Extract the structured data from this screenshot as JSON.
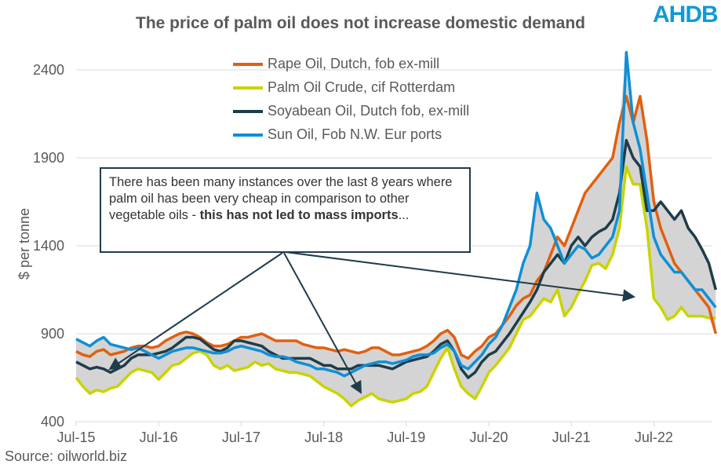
{
  "logo": "AHDB",
  "source": "Source: oilworld.biz",
  "annotation": {
    "text": "There has been many instances over the last 8 years where palm oil has been very cheap in comparison to other vegetable oils - ",
    "bold": "this has not led to mass imports",
    "tail": "..."
  },
  "chart_data": {
    "type": "line",
    "title": "The price of palm oil does not increase domestic demand",
    "ylabel": "$ per tonne",
    "xlabel": "",
    "ylim": [
      400,
      2500
    ],
    "yticks": [
      "400",
      "900",
      "1400",
      "1900",
      "2400"
    ],
    "xticks": [
      "Jul-15",
      "Jul-16",
      "Jul-17",
      "Jul-18",
      "Jul-19",
      "Jul-20",
      "Jul-21",
      "Jul-22"
    ],
    "x_start": "Jul-15",
    "x_step": "month",
    "legend_position": "top-center",
    "series": [
      {
        "name": "Rape Oil, Dutch, fob ex-mill",
        "color": "#e06010",
        "values": [
          800,
          780,
          770,
          800,
          810,
          780,
          790,
          800,
          820,
          830,
          830,
          820,
          830,
          860,
          880,
          900,
          910,
          900,
          880,
          850,
          830,
          830,
          840,
          860,
          880,
          880,
          890,
          900,
          880,
          860,
          860,
          860,
          860,
          840,
          830,
          820,
          820,
          810,
          800,
          810,
          800,
          790,
          800,
          820,
          820,
          800,
          780,
          780,
          790,
          800,
          810,
          830,
          860,
          900,
          920,
          880,
          780,
          760,
          800,
          830,
          880,
          900,
          950,
          1000,
          1060,
          1100,
          1120,
          1200,
          1250,
          1350,
          1450,
          1400,
          1500,
          1600,
          1700,
          1750,
          1800,
          1850,
          1900,
          2100,
          2250,
          2100,
          2250,
          2000,
          1650,
          1500,
          1400,
          1300,
          1250,
          1200,
          1150,
          1100,
          1050,
          900
        ]
      },
      {
        "name": "Palm Oil Crude, cif Rotterdam",
        "color": "#c8d400",
        "values": [
          650,
          600,
          560,
          580,
          570,
          590,
          600,
          640,
          680,
          700,
          690,
          680,
          640,
          680,
          720,
          730,
          760,
          790,
          800,
          780,
          720,
          700,
          720,
          690,
          700,
          710,
          740,
          720,
          730,
          700,
          690,
          680,
          680,
          670,
          660,
          630,
          600,
          580,
          560,
          530,
          490,
          520,
          540,
          560,
          530,
          520,
          510,
          520,
          530,
          560,
          570,
          600,
          680,
          760,
          820,
          700,
          600,
          560,
          530,
          600,
          680,
          720,
          770,
          820,
          900,
          980,
          1000,
          1050,
          1100,
          1080,
          1150,
          1000,
          1050,
          1130,
          1200,
          1290,
          1300,
          1270,
          1350,
          1500,
          1850,
          1750,
          1750,
          1500,
          1100,
          1050,
          980,
          1000,
          1050,
          1000,
          1000,
          1000,
          990,
          990
        ]
      },
      {
        "name": "Soyabean Oil, Dutch fob, ex-mill",
        "color": "#1f3c4a",
        "values": [
          740,
          720,
          700,
          710,
          700,
          680,
          700,
          720,
          760,
          780,
          780,
          780,
          790,
          800,
          820,
          850,
          880,
          880,
          870,
          840,
          810,
          800,
          820,
          860,
          860,
          850,
          840,
          830,
          800,
          780,
          760,
          760,
          760,
          760,
          760,
          740,
          720,
          720,
          700,
          700,
          700,
          720,
          720,
          720,
          720,
          710,
          700,
          720,
          740,
          750,
          760,
          770,
          800,
          840,
          860,
          800,
          700,
          650,
          680,
          740,
          780,
          800,
          850,
          900,
          960,
          1020,
          1080,
          1150,
          1250,
          1300,
          1350,
          1300,
          1400,
          1450,
          1400,
          1450,
          1480,
          1500,
          1550,
          1700,
          2000,
          1900,
          1850,
          1600,
          1600,
          1650,
          1600,
          1550,
          1600,
          1500,
          1450,
          1380,
          1300,
          1150
        ]
      },
      {
        "name": "Sun Oil, Fob N.W. Eur ports",
        "color": "#0f8fd6",
        "values": [
          870,
          850,
          830,
          860,
          880,
          840,
          830,
          820,
          810,
          820,
          800,
          780,
          760,
          780,
          800,
          810,
          820,
          820,
          810,
          800,
          790,
          790,
          800,
          820,
          830,
          820,
          810,
          800,
          780,
          770,
          770,
          760,
          740,
          730,
          720,
          700,
          700,
          690,
          680,
          660,
          680,
          700,
          720,
          730,
          740,
          740,
          730,
          740,
          750,
          770,
          780,
          780,
          790,
          820,
          840,
          800,
          720,
          700,
          740,
          780,
          840,
          880,
          950,
          1050,
          1150,
          1300,
          1400,
          1700,
          1550,
          1500,
          1400,
          1300,
          1350,
          1400,
          1380,
          1330,
          1350,
          1400,
          1450,
          1600,
          2500,
          2100,
          1950,
          1700,
          1450,
          1350,
          1300,
          1250,
          1250,
          1200,
          1150,
          1150,
          1100,
          1050
        ]
      }
    ]
  }
}
